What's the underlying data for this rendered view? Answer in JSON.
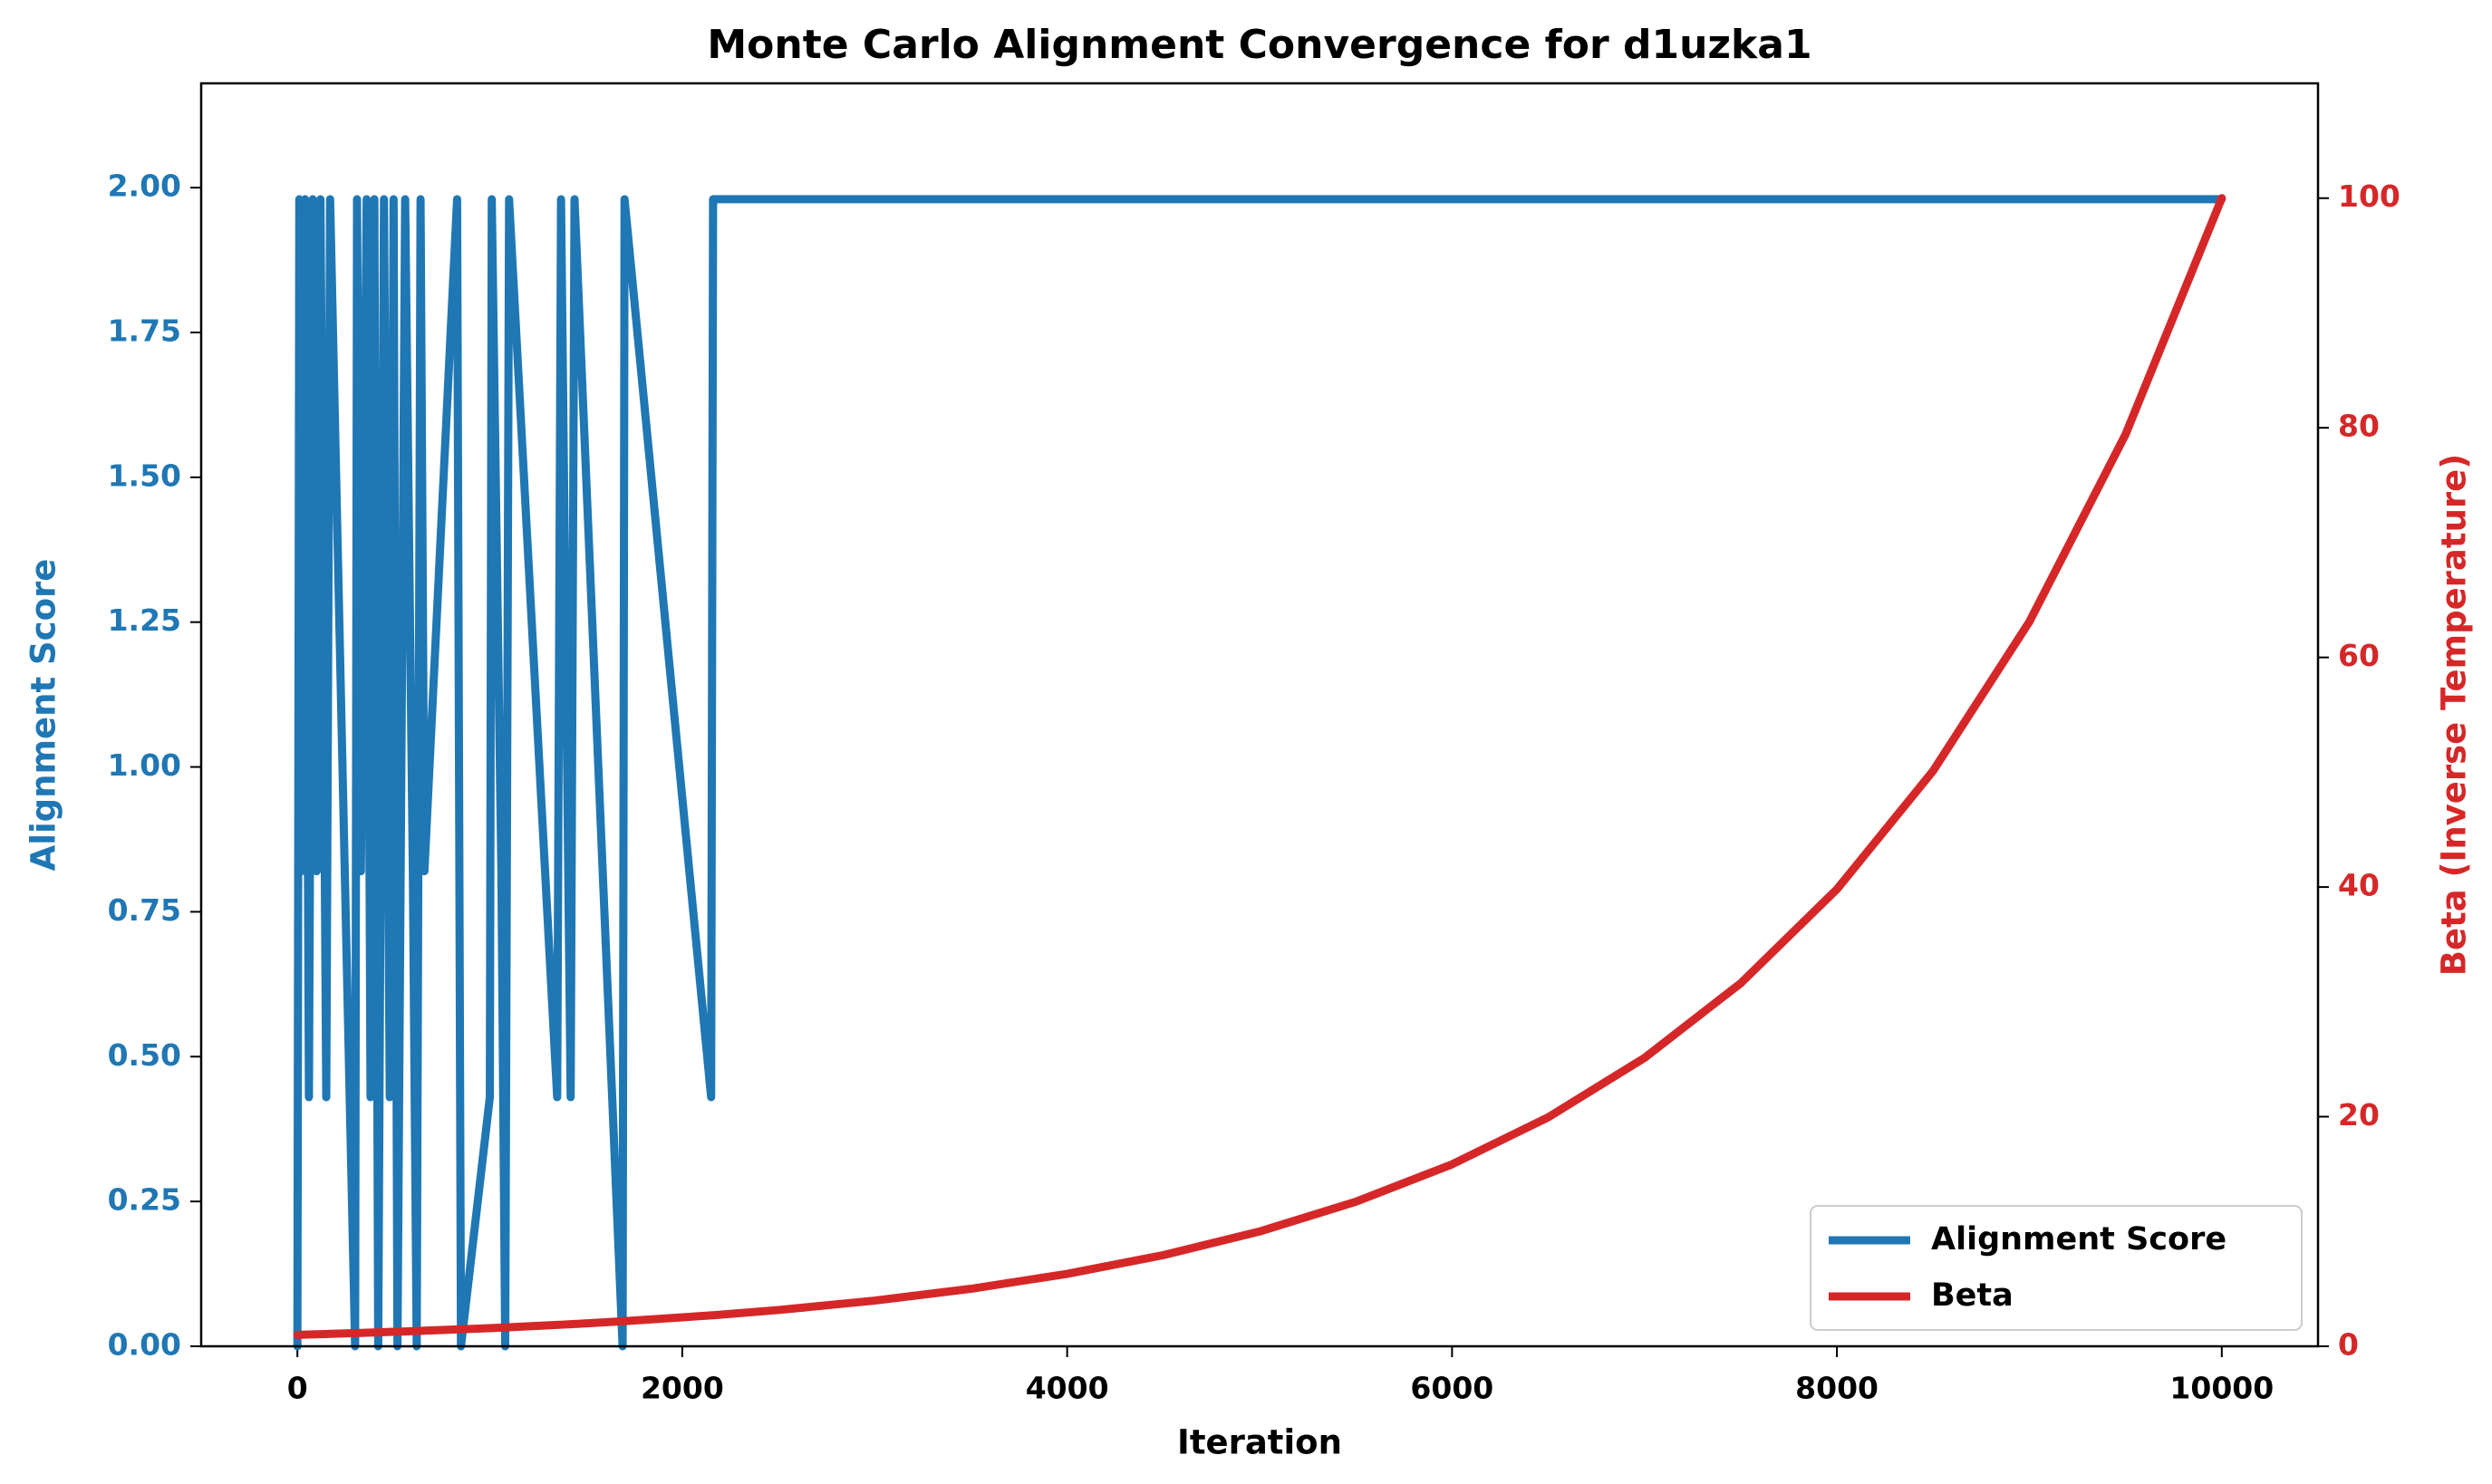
{
  "chart_data": {
    "type": "line",
    "title": "Monte Carlo Alignment Convergence for d1uzka1",
    "xlabel": "Iteration",
    "ylabel": "Alignment Score",
    "y2label": "Beta (Inverse Temperature)",
    "x": [
      0,
      10,
      20,
      40,
      60,
      80,
      100,
      120,
      150,
      170,
      300,
      310,
      330,
      360,
      380,
      400,
      420,
      450,
      480,
      500,
      520,
      560,
      600,
      620,
      640,
      660,
      830,
      850,
      1000,
      1010,
      1060,
      1080,
      1100,
      1350,
      1370,
      1420,
      1440,
      1690,
      1700,
      2150,
      2160,
      2500,
      3000,
      3500,
      4000,
      4500,
      5000,
      5500,
      6000,
      6500,
      7000,
      7500,
      8000,
      8500,
      9000,
      9500,
      10000
    ],
    "series": [
      {
        "name": "Alignment Score",
        "color": "#1f77b4",
        "axis": "y",
        "values": [
          0,
          1.98,
          0.82,
          1.98,
          0.43,
          1.98,
          0.82,
          1.98,
          0.43,
          1.98,
          0,
          1.98,
          0.82,
          1.98,
          0.43,
          1.98,
          0,
          1.98,
          0.43,
          1.98,
          0,
          1.98,
          0.82,
          0,
          1.98,
          0.82,
          1.98,
          0,
          0.43,
          1.98,
          0.82,
          0,
          1.98,
          0.43,
          1.98,
          0.43,
          1.98,
          0,
          1.98,
          0.43,
          1.98,
          1.98,
          1.98,
          1.98,
          1.98,
          1.98,
          1.98,
          1.98,
          1.98,
          1.98,
          1.98,
          1.98,
          1.98,
          1.98,
          1.98,
          1.98,
          1.98
        ]
      },
      {
        "name": "Beta",
        "color": "#d62728",
        "axis": "y2",
        "values": [
          1.0,
          1.0,
          1.01,
          1.02,
          1.03,
          1.04,
          1.05,
          1.06,
          1.07,
          1.08,
          1.15,
          1.15,
          1.16,
          1.18,
          1.19,
          1.2,
          1.21,
          1.23,
          1.25,
          1.26,
          1.27,
          1.29,
          1.32,
          1.33,
          1.34,
          1.36,
          1.47,
          1.48,
          1.58,
          1.59,
          1.63,
          1.64,
          1.66,
          1.86,
          1.88,
          1.92,
          1.94,
          2.18,
          2.19,
          2.69,
          2.7,
          3.16,
          3.98,
          5.01,
          6.31,
          7.94,
          10.0,
          12.59,
          15.85,
          19.95,
          25.12,
          31.62,
          39.81,
          50.12,
          63.1,
          79.43,
          100
        ]
      }
    ],
    "xlim": [
      -500,
      10500
    ],
    "xticks": [
      0,
      2000,
      4000,
      6000,
      8000,
      10000
    ],
    "ylim": [
      0,
      2.18
    ],
    "yticks": [
      {
        "value": 0,
        "label": "0.00"
      },
      {
        "value": 0.25,
        "label": "0.25"
      },
      {
        "value": 0.5,
        "label": "0.50"
      },
      {
        "value": 0.75,
        "label": "0.75"
      },
      {
        "value": 1,
        "label": "1.00"
      },
      {
        "value": 1.25,
        "label": "1.25"
      },
      {
        "value": 1.5,
        "label": "1.50"
      },
      {
        "value": 1.75,
        "label": "1.75"
      },
      {
        "value": 2,
        "label": "2.00"
      }
    ],
    "y2lim": [
      0,
      110
    ],
    "y2ticks": [
      0,
      20,
      40,
      60,
      80,
      100
    ],
    "legend": "lower right",
    "grid": false
  }
}
